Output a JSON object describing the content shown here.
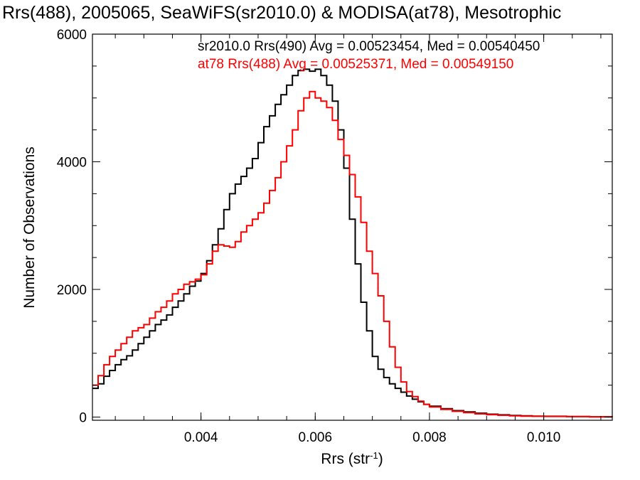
{
  "chart_data": {
    "type": "line",
    "title": "Rrs(488), 2005065, SeaWiFS(sr2010.0) & MODISA(at78), Mesotrophic",
    "xlabel": "Rrs (str",
    "xlabel_superscript": "-1",
    "xlabel_suffix": ")",
    "ylabel": "Number of Observations",
    "xlim": [
      0.0021,
      0.0112
    ],
    "ylim": [
      -50,
      6000
    ],
    "x_ticks": [
      {
        "value": 0.004,
        "label": "0.004"
      },
      {
        "value": 0.006,
        "label": "0.006"
      },
      {
        "value": 0.008,
        "label": "0.008"
      },
      {
        "value": 0.01,
        "label": "0.010"
      }
    ],
    "y_ticks": [
      {
        "value": 0,
        "label": "0"
      },
      {
        "value": 2000,
        "label": "2000"
      },
      {
        "value": 4000,
        "label": "4000"
      },
      {
        "value": 6000,
        "label": "6000"
      }
    ],
    "x_minor_step": 0.0005,
    "y_minor_step": 500,
    "grid": false,
    "legend_position": "top-right",
    "series": [
      {
        "legend": "sr2010.0 Rrs(490) Avg = 0.00523454, Med = 0.00540450",
        "color": "#000000",
        "points": [
          [
            0.0021,
            450
          ],
          [
            0.0022,
            520
          ],
          [
            0.0023,
            640
          ],
          [
            0.0024,
            730
          ],
          [
            0.0025,
            820
          ],
          [
            0.0026,
            900
          ],
          [
            0.0027,
            960
          ],
          [
            0.0028,
            1050
          ],
          [
            0.0029,
            1150
          ],
          [
            0.003,
            1250
          ],
          [
            0.0031,
            1350
          ],
          [
            0.0032,
            1450
          ],
          [
            0.0033,
            1520
          ],
          [
            0.0034,
            1600
          ],
          [
            0.0035,
            1720
          ],
          [
            0.0036,
            1820
          ],
          [
            0.0037,
            1930
          ],
          [
            0.0038,
            2050
          ],
          [
            0.0039,
            2130
          ],
          [
            0.004,
            2250
          ],
          [
            0.0041,
            2450
          ],
          [
            0.0042,
            2700
          ],
          [
            0.0043,
            2950
          ],
          [
            0.0044,
            3250
          ],
          [
            0.0045,
            3500
          ],
          [
            0.0046,
            3650
          ],
          [
            0.0047,
            3770
          ],
          [
            0.0048,
            3900
          ],
          [
            0.0049,
            4050
          ],
          [
            0.005,
            4300
          ],
          [
            0.0051,
            4550
          ],
          [
            0.0052,
            4720
          ],
          [
            0.0053,
            4900
          ],
          [
            0.0054,
            5050
          ],
          [
            0.0055,
            5200
          ],
          [
            0.0056,
            5350
          ],
          [
            0.0057,
            5430
          ],
          [
            0.0058,
            5450
          ],
          [
            0.0059,
            5420
          ],
          [
            0.006,
            5450
          ],
          [
            0.0061,
            5350
          ],
          [
            0.0062,
            5200
          ],
          [
            0.0063,
            4950
          ],
          [
            0.0064,
            4500
          ],
          [
            0.0065,
            3900
          ],
          [
            0.0066,
            3100
          ],
          [
            0.0067,
            2400
          ],
          [
            0.0068,
            1800
          ],
          [
            0.0069,
            1350
          ],
          [
            0.007,
            950
          ],
          [
            0.0071,
            750
          ],
          [
            0.0072,
            620
          ],
          [
            0.0073,
            520
          ],
          [
            0.0074,
            450
          ],
          [
            0.0075,
            390
          ],
          [
            0.0076,
            330
          ],
          [
            0.0077,
            280
          ],
          [
            0.0078,
            240
          ],
          [
            0.0079,
            200
          ],
          [
            0.008,
            170
          ],
          [
            0.0082,
            130
          ],
          [
            0.0084,
            100
          ],
          [
            0.0086,
            80
          ],
          [
            0.0088,
            60
          ],
          [
            0.009,
            45
          ],
          [
            0.0092,
            35
          ],
          [
            0.0094,
            25
          ],
          [
            0.0096,
            20
          ],
          [
            0.0098,
            15
          ],
          [
            0.01,
            12
          ],
          [
            0.0104,
            8
          ],
          [
            0.0108,
            5
          ],
          [
            0.0112,
            3
          ]
        ]
      },
      {
        "legend": "at78 Rrs(488) Avg = 0.00525371, Med = 0.00549150",
        "color": "#ff0000",
        "points": [
          [
            0.0021,
            500
          ],
          [
            0.0022,
            650
          ],
          [
            0.0023,
            820
          ],
          [
            0.0024,
            950
          ],
          [
            0.0025,
            1050
          ],
          [
            0.0026,
            1150
          ],
          [
            0.0027,
            1250
          ],
          [
            0.0028,
            1350
          ],
          [
            0.0029,
            1400
          ],
          [
            0.003,
            1450
          ],
          [
            0.0031,
            1550
          ],
          [
            0.0032,
            1650
          ],
          [
            0.0033,
            1720
          ],
          [
            0.0034,
            1820
          ],
          [
            0.0035,
            1930
          ],
          [
            0.0036,
            2000
          ],
          [
            0.0037,
            2080
          ],
          [
            0.0038,
            2120
          ],
          [
            0.0039,
            2160
          ],
          [
            0.004,
            2230
          ],
          [
            0.0041,
            2400
          ],
          [
            0.0042,
            2600
          ],
          [
            0.0043,
            2700
          ],
          [
            0.0044,
            2680
          ],
          [
            0.0045,
            2660
          ],
          [
            0.0046,
            2750
          ],
          [
            0.0047,
            2900
          ],
          [
            0.0048,
            3000
          ],
          [
            0.0049,
            3100
          ],
          [
            0.005,
            3200
          ],
          [
            0.0051,
            3350
          ],
          [
            0.0052,
            3550
          ],
          [
            0.0053,
            3750
          ],
          [
            0.0054,
            4000
          ],
          [
            0.0055,
            4250
          ],
          [
            0.0056,
            4500
          ],
          [
            0.0057,
            4800
          ],
          [
            0.0058,
            5000
          ],
          [
            0.0059,
            5100
          ],
          [
            0.006,
            5000
          ],
          [
            0.0061,
            4950
          ],
          [
            0.0062,
            4850
          ],
          [
            0.0063,
            4650
          ],
          [
            0.0064,
            4350
          ],
          [
            0.0065,
            4100
          ],
          [
            0.0066,
            3800
          ],
          [
            0.0067,
            3450
          ],
          [
            0.0068,
            3050
          ],
          [
            0.0069,
            2600
          ],
          [
            0.007,
            2250
          ],
          [
            0.0071,
            1900
          ],
          [
            0.0072,
            1500
          ],
          [
            0.0073,
            1100
          ],
          [
            0.0074,
            780
          ],
          [
            0.0075,
            550
          ],
          [
            0.0076,
            400
          ],
          [
            0.0077,
            320
          ],
          [
            0.0078,
            250
          ],
          [
            0.0079,
            200
          ],
          [
            0.008,
            160
          ],
          [
            0.0082,
            120
          ],
          [
            0.0084,
            90
          ],
          [
            0.0086,
            70
          ],
          [
            0.0088,
            50
          ],
          [
            0.009,
            38
          ],
          [
            0.0092,
            28
          ],
          [
            0.0094,
            20
          ],
          [
            0.0096,
            15
          ],
          [
            0.0098,
            12
          ],
          [
            0.01,
            10
          ],
          [
            0.0104,
            7
          ],
          [
            0.0108,
            4
          ],
          [
            0.0112,
            2
          ]
        ]
      }
    ]
  }
}
